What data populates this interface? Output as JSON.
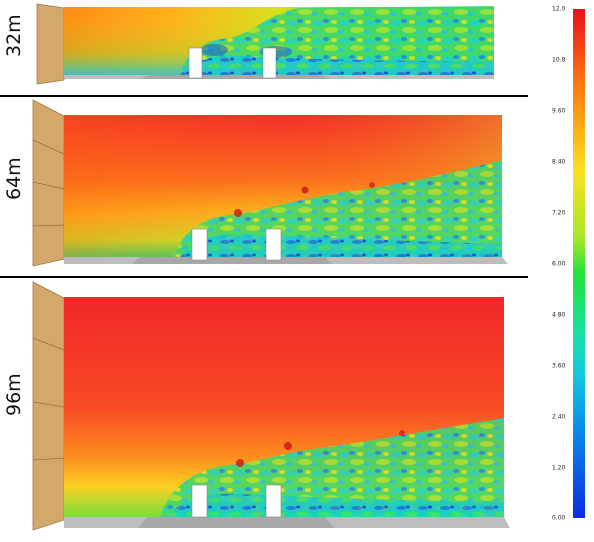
{
  "panels": [
    {
      "label": "32m"
    },
    {
      "label": "64m"
    },
    {
      "label": "96m"
    }
  ],
  "colorbar": {
    "ticks": [
      "12.0",
      "10.8",
      "9.60",
      "8.40",
      "7.20",
      "6.00",
      "4.80",
      "3.60",
      "2.40",
      "1.20",
      "0.00"
    ]
  }
}
